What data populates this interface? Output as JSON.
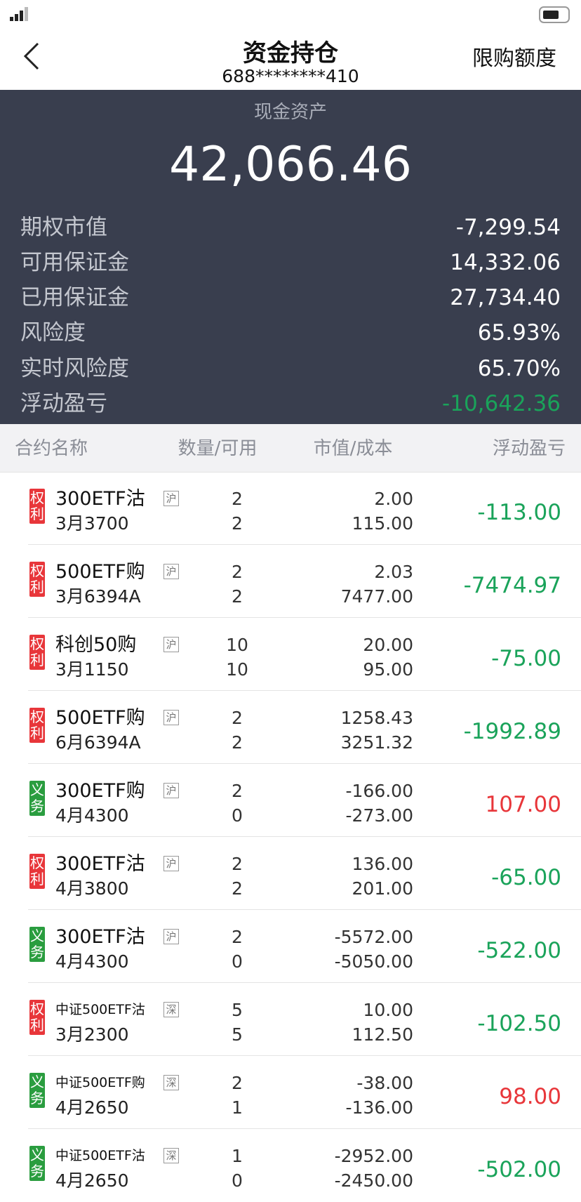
{
  "header": {
    "title": "资金持仓",
    "account": "688********410",
    "action": "限购额度"
  },
  "summary": {
    "label": "现金资产",
    "value": "42,066.46",
    "rows": [
      {
        "label": "期权市值",
        "value": "-7,299.54"
      },
      {
        "label": "可用保证金",
        "value": "14,332.06"
      },
      {
        "label": "已用保证金",
        "value": "27,734.40"
      },
      {
        "label": "风险度",
        "value": "65.93%"
      },
      {
        "label": "实时风险度",
        "value": "65.70%"
      },
      {
        "label": "浮动盈亏",
        "value": "-10,642.36",
        "color": "#1aa35a"
      }
    ]
  },
  "table": {
    "columns": [
      "合约名称",
      "数量/可用",
      "市值/成本",
      "浮动盈亏"
    ],
    "rows": [
      {
        "tag": "权利",
        "tag_color": "#e8363a",
        "name": "300ETF沽",
        "month": "3月3700",
        "exchange": "沪",
        "qty": "2",
        "avail": "2",
        "market": "2.00",
        "cost": "115.00",
        "pnl": "-113.00",
        "pnl_color": "#1aa35a"
      },
      {
        "tag": "权利",
        "tag_color": "#e8363a",
        "name": "500ETF购",
        "month": "3月6394A",
        "exchange": "沪",
        "qty": "2",
        "avail": "2",
        "market": "2.03",
        "cost": "7477.00",
        "pnl": "-7474.97",
        "pnl_color": "#1aa35a"
      },
      {
        "tag": "权利",
        "tag_color": "#e8363a",
        "name": "科创50购",
        "month": "3月1150",
        "exchange": "沪",
        "qty": "10",
        "avail": "10",
        "market": "20.00",
        "cost": "95.00",
        "pnl": "-75.00",
        "pnl_color": "#1aa35a"
      },
      {
        "tag": "权利",
        "tag_color": "#e8363a",
        "name": "500ETF购",
        "month": "6月6394A",
        "exchange": "沪",
        "qty": "2",
        "avail": "2",
        "market": "1258.43",
        "cost": "3251.32",
        "pnl": "-1992.89",
        "pnl_color": "#1aa35a"
      },
      {
        "tag": "义务",
        "tag_color": "#2a9d3f",
        "name": "300ETF购",
        "month": "4月4300",
        "exchange": "沪",
        "qty": "2",
        "avail": "0",
        "market": "-166.00",
        "cost": "-273.00",
        "pnl": "107.00",
        "pnl_color": "#e8363a"
      },
      {
        "tag": "权利",
        "tag_color": "#e8363a",
        "name": "300ETF沽",
        "month": "4月3800",
        "exchange": "沪",
        "qty": "2",
        "avail": "2",
        "market": "136.00",
        "cost": "201.00",
        "pnl": "-65.00",
        "pnl_color": "#1aa35a"
      },
      {
        "tag": "义务",
        "tag_color": "#2a9d3f",
        "name": "300ETF沽",
        "month": "4月4300",
        "exchange": "沪",
        "qty": "2",
        "avail": "0",
        "market": "-5572.00",
        "cost": "-5050.00",
        "pnl": "-522.00",
        "pnl_color": "#1aa35a"
      },
      {
        "tag": "权利",
        "tag_color": "#e8363a",
        "name": "中证500ETF沽",
        "month": "3月2300",
        "exchange": "深",
        "qty": "5",
        "avail": "5",
        "market": "10.00",
        "cost": "112.50",
        "pnl": "-102.50",
        "pnl_color": "#1aa35a"
      },
      {
        "tag": "义务",
        "tag_color": "#2a9d3f",
        "name": "中证500ETF购",
        "month": "4月2650",
        "exchange": "深",
        "qty": "2",
        "avail": "1",
        "market": "-38.00",
        "cost": "-136.00",
        "pnl": "98.00",
        "pnl_color": "#e8363a"
      },
      {
        "tag": "义务",
        "tag_color": "#2a9d3f",
        "name": "中证500ETF沽",
        "month": "4月2650",
        "exchange": "深",
        "qty": "1",
        "avail": "0",
        "market": "-2952.00",
        "cost": "-2450.00",
        "pnl": "-502.00",
        "pnl_color": "#1aa35a"
      }
    ]
  }
}
